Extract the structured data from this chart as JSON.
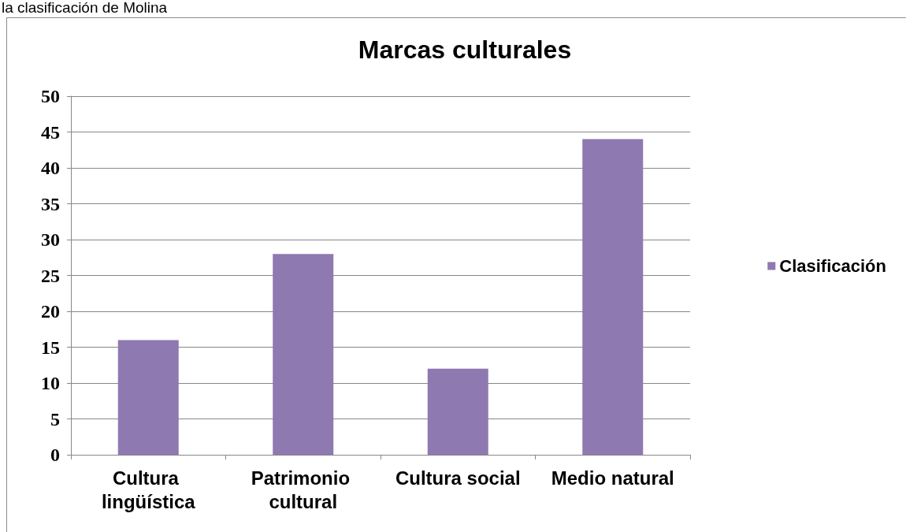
{
  "chart_data": {
    "type": "bar",
    "title": "Marcas culturales",
    "annotations": [
      "la clasificación de Molina"
    ],
    "categories": [
      "Cultura lingüística",
      "Patrimonio cultural",
      "Cultura social",
      "Medio natural"
    ],
    "series": [
      {
        "name": "Clasificación",
        "color": "#8f79b1",
        "values": [
          16,
          28,
          12,
          44
        ]
      }
    ],
    "ylim": [
      0,
      50
    ],
    "yticks": [
      0,
      5,
      10,
      15,
      20,
      25,
      30,
      35,
      40,
      45,
      50
    ],
    "grid": "y",
    "legend": "right"
  }
}
